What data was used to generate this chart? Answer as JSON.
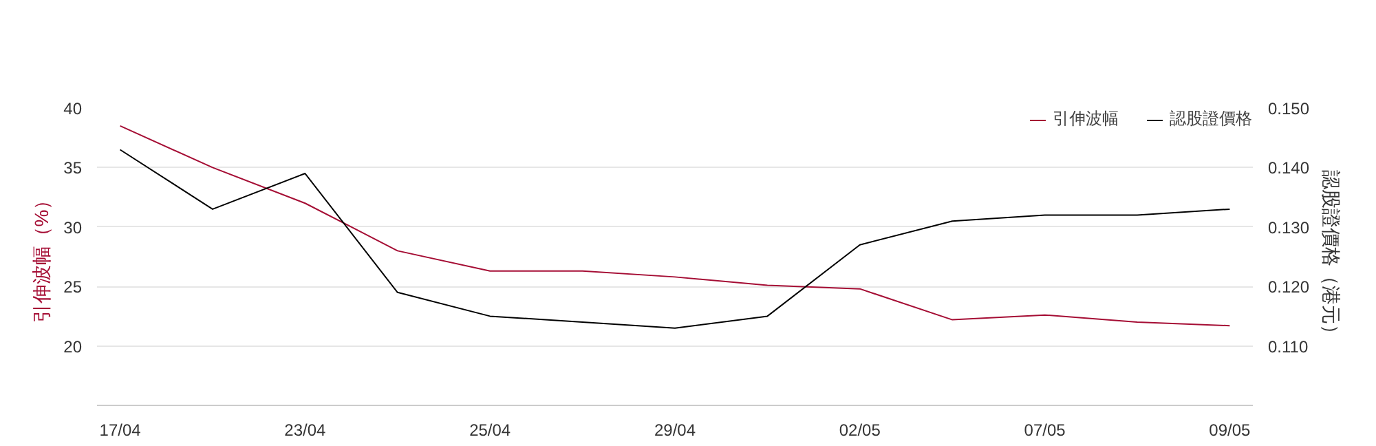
{
  "chart_data": {
    "type": "line",
    "ylabel": "引伸波幅（%）",
    "y2label": "認股證價格（港元）",
    "categories": [
      "17/04",
      null,
      "23/04",
      null,
      "25/04",
      null,
      "29/04",
      null,
      "02/05",
      null,
      "07/05",
      null,
      "09/05"
    ],
    "series": [
      {
        "name": "引伸波幅",
        "color": "#a50d34",
        "values": [
          38.5,
          35.0,
          32.0,
          28.0,
          26.3,
          26.3,
          25.8,
          25.1,
          24.8,
          22.2,
          22.6,
          22.0,
          21.7
        ]
      },
      {
        "name": "認股證價格",
        "color": "#000000",
        "axis": "y2",
        "values": [
          0.143,
          0.133,
          0.139,
          0.119,
          0.115,
          0.114,
          0.113,
          0.115,
          0.127,
          0.131,
          0.132,
          0.132,
          0.133
        ]
      }
    ],
    "ylim": [
      15,
      40
    ],
    "yticks": [
      20,
      25,
      30,
      35,
      40
    ],
    "y2lim": [
      0.1,
      0.15
    ],
    "y2ticks": [
      {
        "value": 0.11,
        "label": "0.110"
      },
      {
        "value": 0.12,
        "label": "0.120"
      },
      {
        "value": 0.13,
        "label": "0.130"
      },
      {
        "value": 0.14,
        "label": "0.140"
      },
      {
        "value": 0.15,
        "label": "0.150"
      }
    ],
    "grid": "y",
    "legend": "top right",
    "line_style": "solid",
    "marker": "none"
  }
}
